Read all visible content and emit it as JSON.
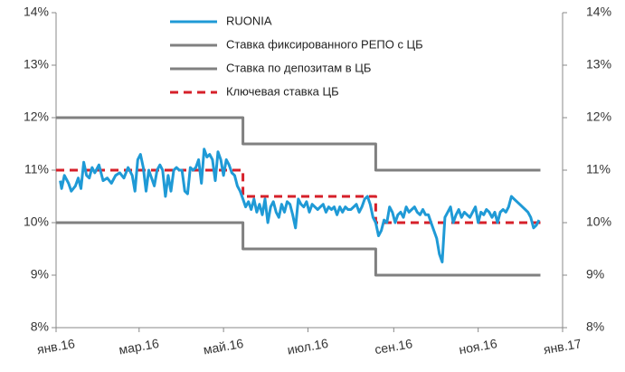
{
  "chart_data": {
    "type": "line",
    "xlim": [
      0,
      366
    ],
    "xticks": [
      {
        "value": 0,
        "label": "янв.16"
      },
      {
        "value": 60,
        "label": "мар.16"
      },
      {
        "value": 121,
        "label": "май.16"
      },
      {
        "value": 182,
        "label": "июл.16"
      },
      {
        "value": 244,
        "label": "сен.16"
      },
      {
        "value": 305,
        "label": "ноя.16"
      },
      {
        "value": 366,
        "label": "янв.17"
      }
    ],
    "ylim": [
      8,
      14
    ],
    "yticks": [
      {
        "value": 8,
        "label": "8%"
      },
      {
        "value": 9,
        "label": "9%"
      },
      {
        "value": 10,
        "label": "10%"
      },
      {
        "value": 11,
        "label": "11%"
      },
      {
        "value": 12,
        "label": "12%"
      },
      {
        "value": 13,
        "label": "13%"
      },
      {
        "value": 14,
        "label": "14%"
      }
    ],
    "y2lim": [
      8,
      14
    ],
    "y2ticks": [
      {
        "value": 8,
        "label": "8%"
      },
      {
        "value": 9,
        "label": "9%"
      },
      {
        "value": 10,
        "label": "10%"
      },
      {
        "value": 11,
        "label": "11%"
      },
      {
        "value": 12,
        "label": "12%"
      },
      {
        "value": 13,
        "label": "13%"
      },
      {
        "value": 14,
        "label": "14%"
      }
    ],
    "legend": "top",
    "series": [
      {
        "name": "RUONIA",
        "color": "#1f9ad6",
        "dashed": false,
        "x": [
          3,
          4,
          6,
          9,
          11,
          14,
          16,
          18,
          20,
          22,
          24,
          26,
          28,
          31,
          34,
          37,
          40,
          43,
          46,
          49,
          52,
          55,
          57,
          59,
          61,
          63,
          65,
          67,
          69,
          71,
          73,
          75,
          77,
          79,
          81,
          83,
          85,
          87,
          89,
          91,
          93,
          95,
          97,
          99,
          101,
          103,
          105,
          107,
          109,
          111,
          113,
          115,
          117,
          119,
          121,
          123,
          125,
          127,
          129,
          131,
          133,
          135,
          137,
          139,
          141,
          143,
          145,
          147,
          149,
          151,
          153,
          155,
          157,
          159,
          161,
          163,
          165,
          167,
          169,
          171,
          173,
          175,
          177,
          179,
          181,
          183,
          185,
          187,
          189,
          191,
          193,
          195,
          197,
          199,
          201,
          203,
          205,
          207,
          209,
          211,
          213,
          215,
          217,
          219,
          221,
          223,
          225,
          227,
          229,
          231,
          233,
          235,
          237,
          239,
          241,
          243,
          245,
          247,
          249,
          251,
          253,
          255,
          257,
          259,
          261,
          263,
          265,
          267,
          269,
          271,
          273,
          275,
          277,
          279,
          281,
          283,
          285,
          287,
          289,
          291,
          293,
          295,
          297,
          299,
          301,
          303,
          305,
          307,
          309,
          311,
          313,
          315,
          317,
          319,
          321,
          323,
          325,
          327,
          329,
          331,
          333,
          335,
          337,
          339,
          341,
          343,
          345,
          347,
          349
        ],
        "values": [
          10.8,
          10.65,
          10.9,
          10.75,
          10.6,
          10.7,
          10.85,
          10.65,
          11.15,
          10.9,
          10.85,
          11.05,
          10.95,
          11.1,
          10.8,
          10.85,
          10.75,
          10.9,
          10.95,
          10.85,
          11.05,
          10.9,
          10.6,
          11.2,
          11.3,
          11.05,
          10.6,
          11.0,
          10.85,
          10.7,
          11.0,
          11.1,
          11.0,
          10.5,
          10.9,
          10.6,
          11.0,
          11.05,
          11.0,
          11.0,
          10.6,
          10.55,
          11.05,
          11.0,
          11.05,
          11.2,
          10.75,
          11.4,
          11.25,
          11.3,
          11.2,
          10.8,
          11.35,
          11.2,
          10.9,
          11.2,
          11.1,
          10.95,
          10.9,
          10.7,
          10.6,
          10.45,
          10.3,
          10.4,
          10.25,
          10.45,
          10.2,
          10.35,
          10.15,
          10.45,
          10.0,
          10.3,
          10.4,
          10.2,
          10.1,
          10.35,
          10.2,
          10.4,
          10.35,
          10.15,
          9.9,
          10.45,
          10.35,
          10.3,
          10.4,
          10.2,
          10.35,
          10.3,
          10.25,
          10.3,
          10.35,
          10.2,
          10.3,
          10.25,
          10.3,
          10.15,
          10.3,
          10.2,
          10.3,
          10.25,
          10.25,
          10.3,
          10.35,
          10.2,
          10.3,
          10.45,
          10.5,
          10.35,
          10.1,
          10.0,
          9.75,
          9.85,
          10.05,
          10.0,
          10.3,
          10.2,
          10.0,
          10.15,
          10.2,
          10.1,
          10.3,
          10.2,
          10.25,
          10.3,
          10.2,
          10.15,
          10.25,
          10.15,
          10.15,
          10.0,
          9.85,
          9.7,
          9.4,
          9.25,
          10.1,
          10.2,
          10.3,
          10.0,
          10.15,
          10.25,
          10.1,
          10.2,
          10.15,
          10.1,
          10.2,
          10.3,
          10.0,
          10.2,
          10.15,
          10.25,
          10.2,
          10.1,
          10.2,
          10.0,
          10.2,
          10.25,
          10.2,
          10.3,
          10.5,
          10.45,
          10.4,
          10.35,
          10.3,
          10.25,
          10.2,
          10.1,
          9.9,
          9.95,
          10.05
        ]
      },
      {
        "name": "Ставка фиксированного РЕПО с ЦБ",
        "color": "#808080",
        "dashed": false,
        "x": [
          0,
          135,
          135,
          231,
          231,
          350
        ],
        "values": [
          12,
          12,
          11.5,
          11.5,
          11,
          11
        ]
      },
      {
        "name": "Ставка по депозитам в ЦБ",
        "color": "#808080",
        "dashed": false,
        "x": [
          0,
          135,
          135,
          231,
          231,
          350
        ],
        "values": [
          10,
          10,
          9.5,
          9.5,
          9,
          9
        ]
      },
      {
        "name": "Ключевая ставка ЦБ",
        "color": "#d6202a",
        "dashed": true,
        "x": [
          0,
          135,
          135,
          231,
          231,
          350
        ],
        "values": [
          11,
          11,
          10.5,
          10.5,
          10,
          10
        ]
      }
    ]
  }
}
